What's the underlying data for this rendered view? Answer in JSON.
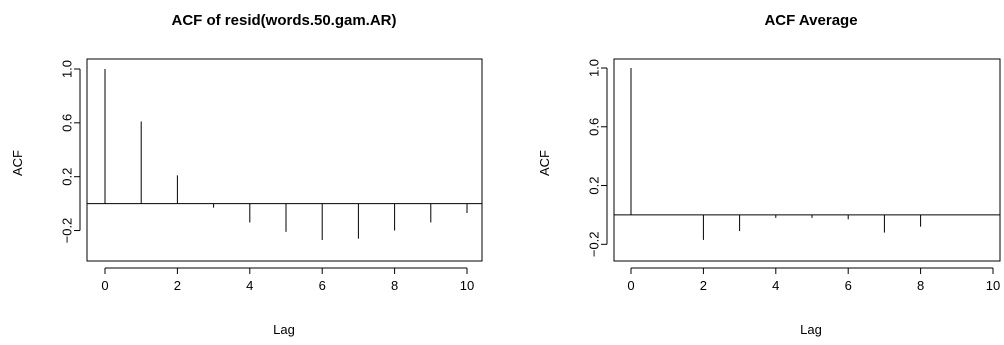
{
  "chart_data": [
    {
      "type": "bar",
      "title": "ACF of resid(words.50.gam.AR)",
      "xlabel": "Lag",
      "ylabel": "ACF",
      "x": [
        0,
        1,
        2,
        3,
        4,
        5,
        6,
        7,
        8,
        9,
        10
      ],
      "values": [
        1.0,
        0.61,
        0.21,
        -0.03,
        -0.14,
        -0.21,
        -0.27,
        -0.26,
        -0.2,
        -0.14,
        -0.07
      ],
      "xlim": [
        0,
        10
      ],
      "ylim": [
        -0.3,
        1.0
      ],
      "xticks": [
        "0",
        "2",
        "4",
        "6",
        "8",
        "10"
      ],
      "yticks": [
        "−0.2",
        "0.2",
        "0.6",
        "1.0"
      ],
      "grid": false,
      "legend": "none"
    },
    {
      "type": "bar",
      "title": "ACF Average",
      "xlabel": "Lag",
      "ylabel": "ACF",
      "x": [
        0,
        1,
        2,
        3,
        4,
        5,
        6,
        7,
        8,
        9,
        10
      ],
      "values": [
        1.0,
        0.0,
        -0.17,
        -0.11,
        -0.02,
        -0.02,
        -0.03,
        -0.12,
        -0.08,
        0.0,
        0.0
      ],
      "xlim": [
        0,
        10
      ],
      "ylim": [
        -0.3,
        1.0
      ],
      "xticks": [
        "0",
        "2",
        "4",
        "6",
        "8",
        "10"
      ],
      "yticks": [
        "−0.2",
        "0.2",
        "0.6",
        "1.0"
      ],
      "grid": false,
      "legend": "none"
    }
  ]
}
